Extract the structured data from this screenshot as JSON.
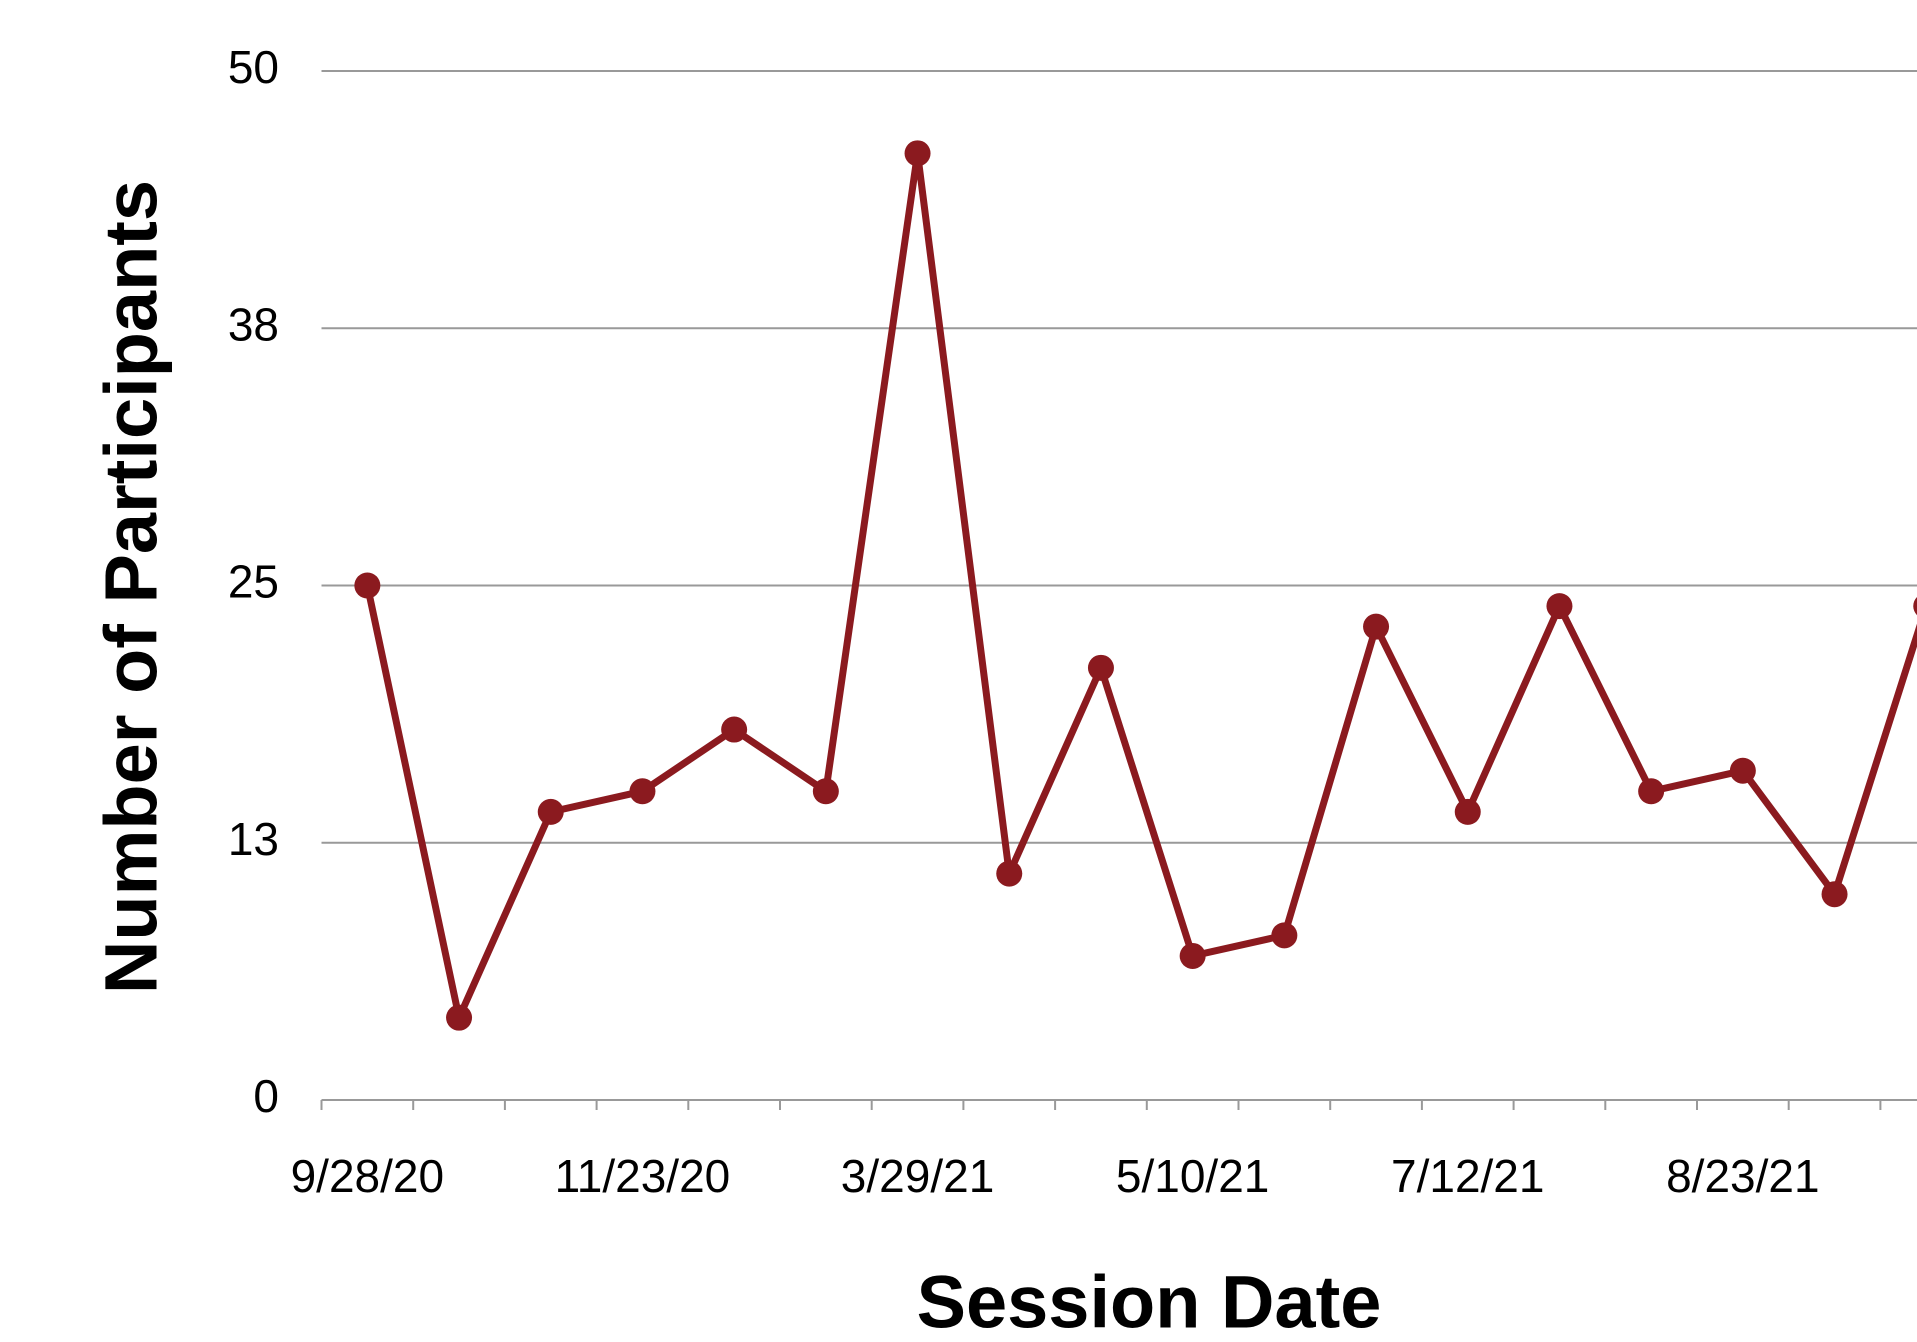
{
  "chart_data": {
    "type": "line",
    "x_label": "Session Date",
    "y_label": "Number of Participants",
    "categories": [
      "9/28/20",
      null,
      null,
      "11/23/20",
      null,
      null,
      "3/29/21",
      null,
      null,
      "5/10/21",
      null,
      null,
      "7/12/21",
      null,
      null,
      "8/23/21",
      null,
      null
    ],
    "values": [
      25,
      4,
      14,
      15,
      18,
      15,
      46,
      11,
      21,
      7,
      8,
      23,
      14,
      24,
      15,
      16,
      10,
      24
    ],
    "color": "#8b1a1f",
    "ylim": [
      0,
      50
    ],
    "yticks": [
      0,
      {
        "value": 12.5,
        "label": "13"
      },
      25,
      {
        "value": 37.5,
        "label": "38"
      },
      50
    ],
    "grid": true
  }
}
